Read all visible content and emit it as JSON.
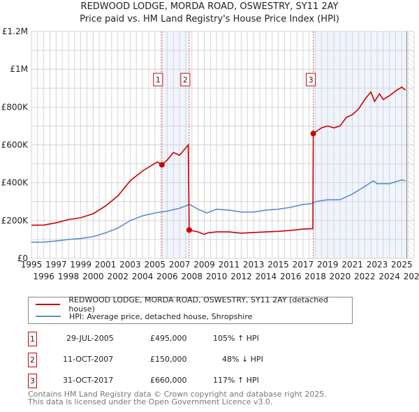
{
  "chart_data": {
    "type": "line",
    "title": "REDWOOD LODGE, MORDA ROAD, OSWESTRY, SY11 2AY",
    "subtitle": "Price paid vs. HM Land Registry's House Price Index (HPI)",
    "xlim": [
      1995,
      2026
    ],
    "ylim": [
      0,
      1200000
    ],
    "x_ticks": [
      "1995",
      "1996",
      "1997",
      "1998",
      "1999",
      "2000",
      "2001",
      "2002",
      "2003",
      "2004",
      "2005",
      "2006",
      "2007",
      "2008",
      "2009",
      "2010",
      "2011",
      "2012",
      "2013",
      "2014",
      "2015",
      "2016",
      "2017",
      "2018",
      "2019",
      "2020",
      "2021",
      "2022",
      "2023",
      "2024",
      "2025",
      "2026"
    ],
    "y_ticks": [
      {
        "v": 0,
        "label": "£0"
      },
      {
        "v": 200000,
        "label": "£200K"
      },
      {
        "v": 400000,
        "label": "£400K"
      },
      {
        "v": 600000,
        "label": "£600K"
      },
      {
        "v": 800000,
        "label": "£800K"
      },
      {
        "v": 1000000,
        "label": "£1M"
      },
      {
        "v": 1200000,
        "label": "£1.2M"
      }
    ],
    "series": [
      {
        "name": "REDWOOD LODGE, MORDA ROAD, OSWESTRY, SY11 2AY (detached house)",
        "color": "#cc0000",
        "x": [
          1995,
          1996,
          1997,
          1998,
          1999,
          2000,
          2001,
          2002,
          2003,
          2004,
          2005.2,
          2005.57,
          2006,
          2006.5,
          2007,
          2007.7,
          2007.78,
          2008.5,
          2009,
          2009.3,
          2010,
          2011,
          2012,
          2013,
          2014,
          2015,
          2016,
          2017,
          2017.8,
          2017.83,
          2018.5,
          2019,
          2019.5,
          2020,
          2020.5,
          2021,
          2021.5,
          2022,
          2022.5,
          2022.8,
          2023.2,
          2023.5,
          2024,
          2024.6,
          2025,
          2025.3
        ],
        "y": [
          175000,
          176000,
          188000,
          205000,
          215000,
          236000,
          277000,
          330000,
          410000,
          462000,
          510000,
          495000,
          520000,
          560000,
          545000,
          600000,
          150000,
          140000,
          127000,
          135000,
          140000,
          140000,
          133000,
          137000,
          140000,
          143000,
          148000,
          155000,
          157000,
          660000,
          690000,
          700000,
          690000,
          700000,
          745000,
          760000,
          790000,
          840000,
          880000,
          830000,
          870000,
          840000,
          860000,
          890000,
          905000,
          890000
        ]
      },
      {
        "name": "HPI: Average price, detached house, Shropshire",
        "color": "#5b8fd0",
        "x": [
          1995,
          1996,
          1997,
          1998,
          1999,
          2000,
          2001,
          2002,
          2003,
          2004,
          2005,
          2006,
          2007,
          2007.8,
          2008.5,
          2009.2,
          2010,
          2011,
          2012,
          2013,
          2014,
          2015,
          2016,
          2017,
          2017.8,
          2018,
          2019,
          2020,
          2021,
          2022,
          2022.7,
          2023,
          2024,
          2025,
          2025.3
        ],
        "y": [
          85000,
          86000,
          92000,
          100000,
          105000,
          115000,
          135000,
          160000,
          200000,
          225000,
          240000,
          250000,
          265000,
          285000,
          260000,
          240000,
          260000,
          255000,
          245000,
          245000,
          255000,
          260000,
          270000,
          285000,
          290000,
          300000,
          310000,
          310000,
          340000,
          380000,
          410000,
          395000,
          395000,
          415000,
          410000
        ]
      }
    ],
    "sales": [
      {
        "id": "1",
        "date": "29-JUL-2005",
        "x": 2005.57,
        "price": 495000,
        "price_label": "£495,000",
        "hpi": "105% ↑ HPI"
      },
      {
        "id": "2",
        "date": "11-OCT-2007",
        "x": 2007.78,
        "price": 150000,
        "price_label": "£150,000",
        "hpi": "48% ↓ HPI"
      },
      {
        "id": "3",
        "date": "31-OCT-2017",
        "x": 2017.83,
        "price": 660000,
        "price_label": "£660,000",
        "hpi": "117% ↑ HPI"
      }
    ],
    "data_end": 2025.4
  },
  "footer": {
    "line1": "Contains HM Land Registry data © Crown copyright and database right 2025.",
    "line2": "This data is licensed under the Open Government Licence v3.0."
  }
}
